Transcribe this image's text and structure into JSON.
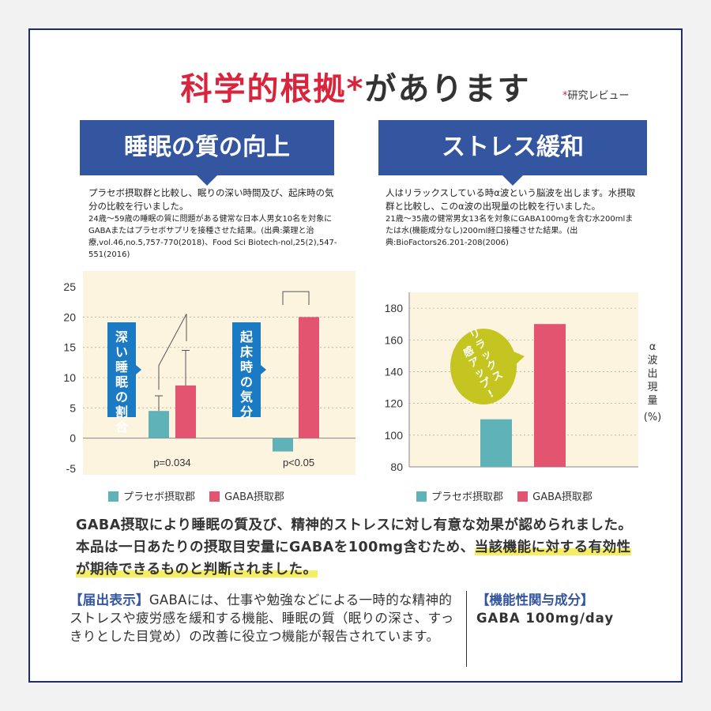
{
  "title": {
    "part_red": "科学的根拠*",
    "part_dark": "があります",
    "note_ast": "*",
    "note": "研究レビュー"
  },
  "left": {
    "banner": "睡眠の質の向上",
    "desc_main": "プラセボ摂取群と比較し、眠りの深い時間及び、起床時の気分の比較を行いました。",
    "desc_sub": "24歳～59歳の睡眠の質に問題がある健常な日本人男女10名を対象にGABAまたはプラセボサプリを接種させた結果。(出典:薬理と治療,vol.46,no.5,757-770(2018)、Food Sci Biotech-nol,25(2),547-551(2016)",
    "callout1": "深い睡眠の割合",
    "callout2": "起床時の気分",
    "p1": "p=0.034",
    "p2": "p<0.05"
  },
  "right": {
    "banner": "ストレス緩和",
    "desc_main": "人はリラックスしている時α波という脳波を出します。水摂取群と比較し、このα波の出現量の比較を行いました。",
    "desc_sub": "21歳～35歳の健常男女13名を対象にGABA100mgを含む水200mlまたは水(機能成分なし)200ml経口接種させた結果。(出典:BioFactors26.201-208(2006)",
    "bubble": "リラックス感アップ!",
    "ylabel": "α波出現量",
    "yunit": "(%)"
  },
  "legend": {
    "placebo": "プラセボ摂取郡",
    "gaba": "GABA摂取郡"
  },
  "colors": {
    "placebo": "#5fb3b8",
    "gaba": "#e25470",
    "banner": "#3456a0",
    "accent": "#d8243c",
    "plot_bg": "#fdf4e0",
    "bubble": "#c4c521",
    "callout": "#1a7ac3"
  },
  "summary": {
    "text1": "GABA摂取により睡眠の質及び、精神的ストレスに対し有意な効果が認められました。本品は一日あたりの摂取目安量にGABAを100mg含むため、",
    "highlight": "当該機能に対する有効性が期待できるものと判断されました。"
  },
  "notice": {
    "head": "【届出表示】",
    "text": "GABAには、仕事や勉強などによる一時的な精神的ストレスや疲労感を緩和する機能、睡眠の質（眠りの深さ、すっきりとした目覚め）の改善に役立つ機能が報告されています。"
  },
  "functional": {
    "head": "【機能性関与成分】",
    "value": "GABA 100mg/day"
  },
  "chart_data": [
    {
      "type": "bar",
      "categories": [
        "深い睡眠の割合",
        "起床時の気分"
      ],
      "series": [
        {
          "name": "プラセボ摂取郡",
          "values": [
            4.5,
            -2.2
          ],
          "error": [
            2.5,
            0
          ]
        },
        {
          "name": "GABA摂取郡",
          "values": [
            8.7,
            20
          ],
          "error": [
            5.8,
            0
          ]
        }
      ],
      "yticks": [
        -5,
        0,
        5,
        10,
        15,
        20,
        25
      ],
      "ylim": [
        -5,
        25
      ],
      "annotations": [
        "p=0.034",
        "p<0.05"
      ]
    },
    {
      "type": "bar",
      "categories": [
        ""
      ],
      "series": [
        {
          "name": "プラセボ摂取郡",
          "values": [
            110
          ]
        },
        {
          "name": "GABA摂取郡",
          "values": [
            170
          ]
        }
      ],
      "yticks": [
        80,
        100,
        120,
        140,
        160,
        180
      ],
      "ylim": [
        80,
        190
      ],
      "ylabel": "α波出現量(%)"
    }
  ]
}
